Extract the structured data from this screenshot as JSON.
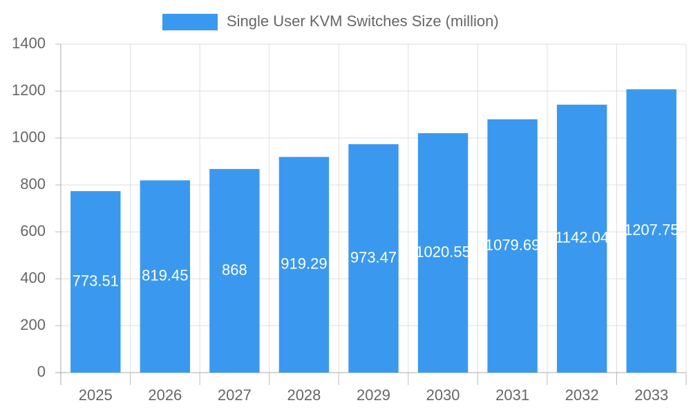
{
  "chart_data": {
    "type": "bar",
    "legend": "Single User KVM Switches Size (million)",
    "categories": [
      "2025",
      "2026",
      "2027",
      "2028",
      "2029",
      "2030",
      "2031",
      "2032",
      "2033"
    ],
    "values": [
      773.51,
      819.45,
      868,
      919.29,
      973.47,
      1020.55,
      1079.69,
      1142.04,
      1207.75
    ],
    "color": "#3a99ee",
    "ylim": [
      0,
      1400
    ],
    "yticks": [
      0,
      200,
      400,
      600,
      800,
      1000,
      1200,
      1400
    ],
    "grid": true
  }
}
